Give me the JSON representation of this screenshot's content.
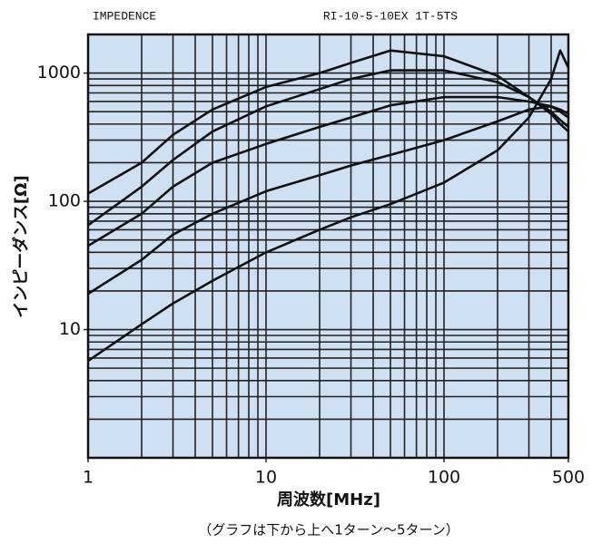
{
  "chart_data": {
    "type": "line",
    "title": "IMPEDENCE",
    "subtitle": "RI-10-5-10EX 1T-5TS",
    "y_label": "インピーダンス[Ω]",
    "x_label": "周波数[MHz]",
    "note": "（グラフは下から上へ1ターン～5ターン）",
    "log_x": true,
    "log_y": true,
    "xlim": [
      1,
      500
    ],
    "ylim": [
      1,
      2000
    ],
    "xticks": [
      1,
      10,
      100,
      500
    ],
    "yticks": [
      10,
      100,
      1000
    ],
    "xgrid": [
      2,
      3,
      4,
      5,
      6,
      7,
      8,
      9,
      10,
      20,
      30,
      40,
      50,
      60,
      70,
      80,
      90,
      100,
      200,
      300,
      400
    ],
    "ygrid": [
      2,
      3,
      4,
      5,
      6,
      7,
      8,
      9,
      10,
      20,
      30,
      40,
      50,
      60,
      70,
      80,
      90,
      100,
      200,
      300,
      400,
      500,
      600,
      700,
      800,
      900,
      1000
    ],
    "grid": true,
    "background": "#cfe0f2",
    "x": [
      1,
      2,
      3,
      5,
      10,
      20,
      30,
      50,
      100,
      200,
      300,
      400,
      450,
      500
    ],
    "series": [
      {
        "color": "#111111",
        "values": [
          5.7,
          11,
          16,
          24,
          40,
          60,
          75,
          95,
          140,
          250,
          450,
          900,
          1500,
          1100
        ]
      },
      {
        "color": "#111111",
        "values": [
          19,
          35,
          55,
          80,
          120,
          160,
          190,
          230,
          300,
          420,
          520,
          550,
          520,
          480
        ]
      },
      {
        "color": "#111111",
        "values": [
          45,
          80,
          130,
          200,
          280,
          380,
          450,
          560,
          650,
          650,
          600,
          550,
          500,
          450
        ]
      },
      {
        "color": "#111111",
        "values": [
          65,
          130,
          210,
          350,
          550,
          750,
          900,
          1050,
          1050,
          850,
          650,
          500,
          430,
          380
        ]
      },
      {
        "color": "#111111",
        "values": [
          115,
          200,
          330,
          520,
          780,
          1000,
          1200,
          1500,
          1350,
          950,
          650,
          480,
          400,
          350
        ]
      }
    ]
  }
}
